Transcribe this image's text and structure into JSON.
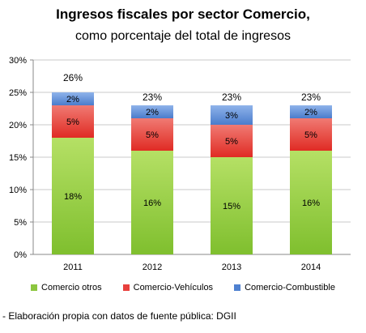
{
  "chart_data": {
    "type": "bar",
    "stacked": true,
    "title": "Ingresos fiscales por sector Comercio,",
    "subtitle": "como porcentaje del total de ingresos",
    "categories": [
      "2011",
      "2012",
      "2013",
      "2014"
    ],
    "series": [
      {
        "name": "Comercio otros",
        "color": "#8cc63f",
        "values": [
          18,
          16,
          15,
          16
        ],
        "labels": [
          "18%",
          "16%",
          "15%",
          "16%"
        ]
      },
      {
        "name": "Comercio-Vehículos",
        "color": "#e8403d",
        "values": [
          5,
          5,
          5,
          5
        ],
        "labels": [
          "5%",
          "5%",
          "5%",
          "5%"
        ]
      },
      {
        "name": "Comercio-Combustible",
        "color": "#4f81d0",
        "values": [
          2,
          2,
          3,
          2
        ],
        "labels": [
          "2%",
          "2%",
          "3%",
          "2%"
        ]
      }
    ],
    "totals": [
      26,
      23,
      23,
      23
    ],
    "total_labels": [
      "26%",
      "23%",
      "23%",
      "23%"
    ],
    "ylim": [
      0,
      30
    ],
    "y_ticks": [
      0,
      5,
      10,
      15,
      20,
      25,
      30
    ],
    "y_tick_labels": [
      "0%",
      "5%",
      "10%",
      "15%",
      "20%",
      "25%",
      "30%"
    ],
    "grid": true,
    "legend_position": "bottom"
  },
  "footer": {
    "source_note": "- Elaboración propia con datos de fuente pública: DGII"
  }
}
